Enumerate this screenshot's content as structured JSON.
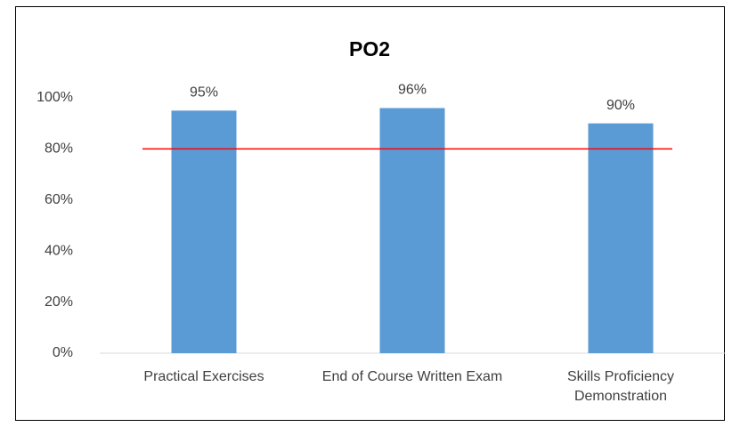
{
  "chart_data": {
    "type": "bar",
    "title": "PO2",
    "categories": [
      "Practical Exercises",
      "End of Course Written Exam",
      "Skills Proficiency Demonstration"
    ],
    "values": [
      95,
      96,
      90
    ],
    "value_labels": [
      "95%",
      "96%",
      "90%"
    ],
    "color": "#5b9bd5",
    "ylim": [
      0,
      100
    ],
    "yticks": [
      {
        "value": 0,
        "label": "0%"
      },
      {
        "value": 20,
        "label": "20%"
      },
      {
        "value": 40,
        "label": "40%"
      },
      {
        "value": 60,
        "label": "60%"
      },
      {
        "value": 80,
        "label": "80%"
      },
      {
        "value": 100,
        "label": "100%"
      }
    ],
    "grid": false,
    "reference_line": {
      "value": 80,
      "color": "#ff0000"
    }
  }
}
